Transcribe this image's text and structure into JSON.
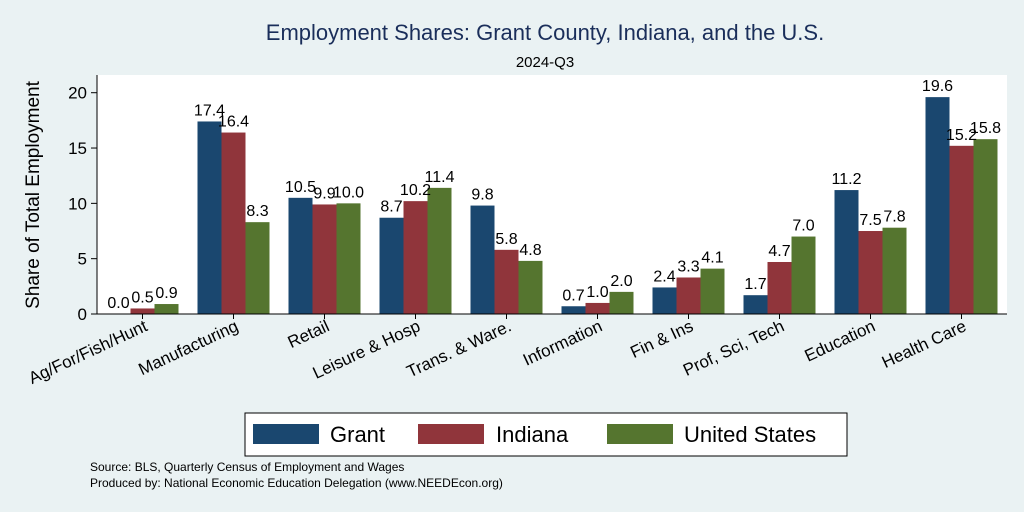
{
  "chart_data": {
    "type": "bar",
    "title": "Employment Shares: Grant County, Indiana, and the U.S.",
    "subtitle": "2024-Q3",
    "xlabel": "",
    "ylabel": "Share of Total Employment",
    "ylim": [
      0,
      21.6
    ],
    "yticks": [
      0,
      5,
      10,
      15,
      20
    ],
    "grid": false,
    "legend_position": "bottom",
    "categories": [
      "Ag/For/Fish/Hunt",
      "Manufacturing",
      "Retail",
      "Leisure & Hosp",
      "Trans. & Ware.",
      "Information",
      "Fin & Ins",
      "Prof, Sci, Tech",
      "Education",
      "Health Care"
    ],
    "series": [
      {
        "name": "Grant",
        "color": "#1a476f",
        "values": [
          0.0,
          17.4,
          10.5,
          8.7,
          9.8,
          0.7,
          2.4,
          1.7,
          11.2,
          19.6
        ]
      },
      {
        "name": "Indiana",
        "color": "#90353b",
        "values": [
          0.5,
          16.4,
          9.9,
          10.2,
          5.8,
          1.0,
          3.3,
          4.7,
          7.5,
          15.2
        ]
      },
      {
        "name": "United States",
        "color": "#55752f",
        "values": [
          0.9,
          8.3,
          10.0,
          11.4,
          4.8,
          2.0,
          4.1,
          7.0,
          7.8,
          15.8
        ]
      }
    ]
  },
  "footer": {
    "source": "Source: BLS, Quarterly Census of Employment and Wages",
    "producer": "Produced by: National Economic Education Delegation (www.NEEDEcon.org)"
  }
}
